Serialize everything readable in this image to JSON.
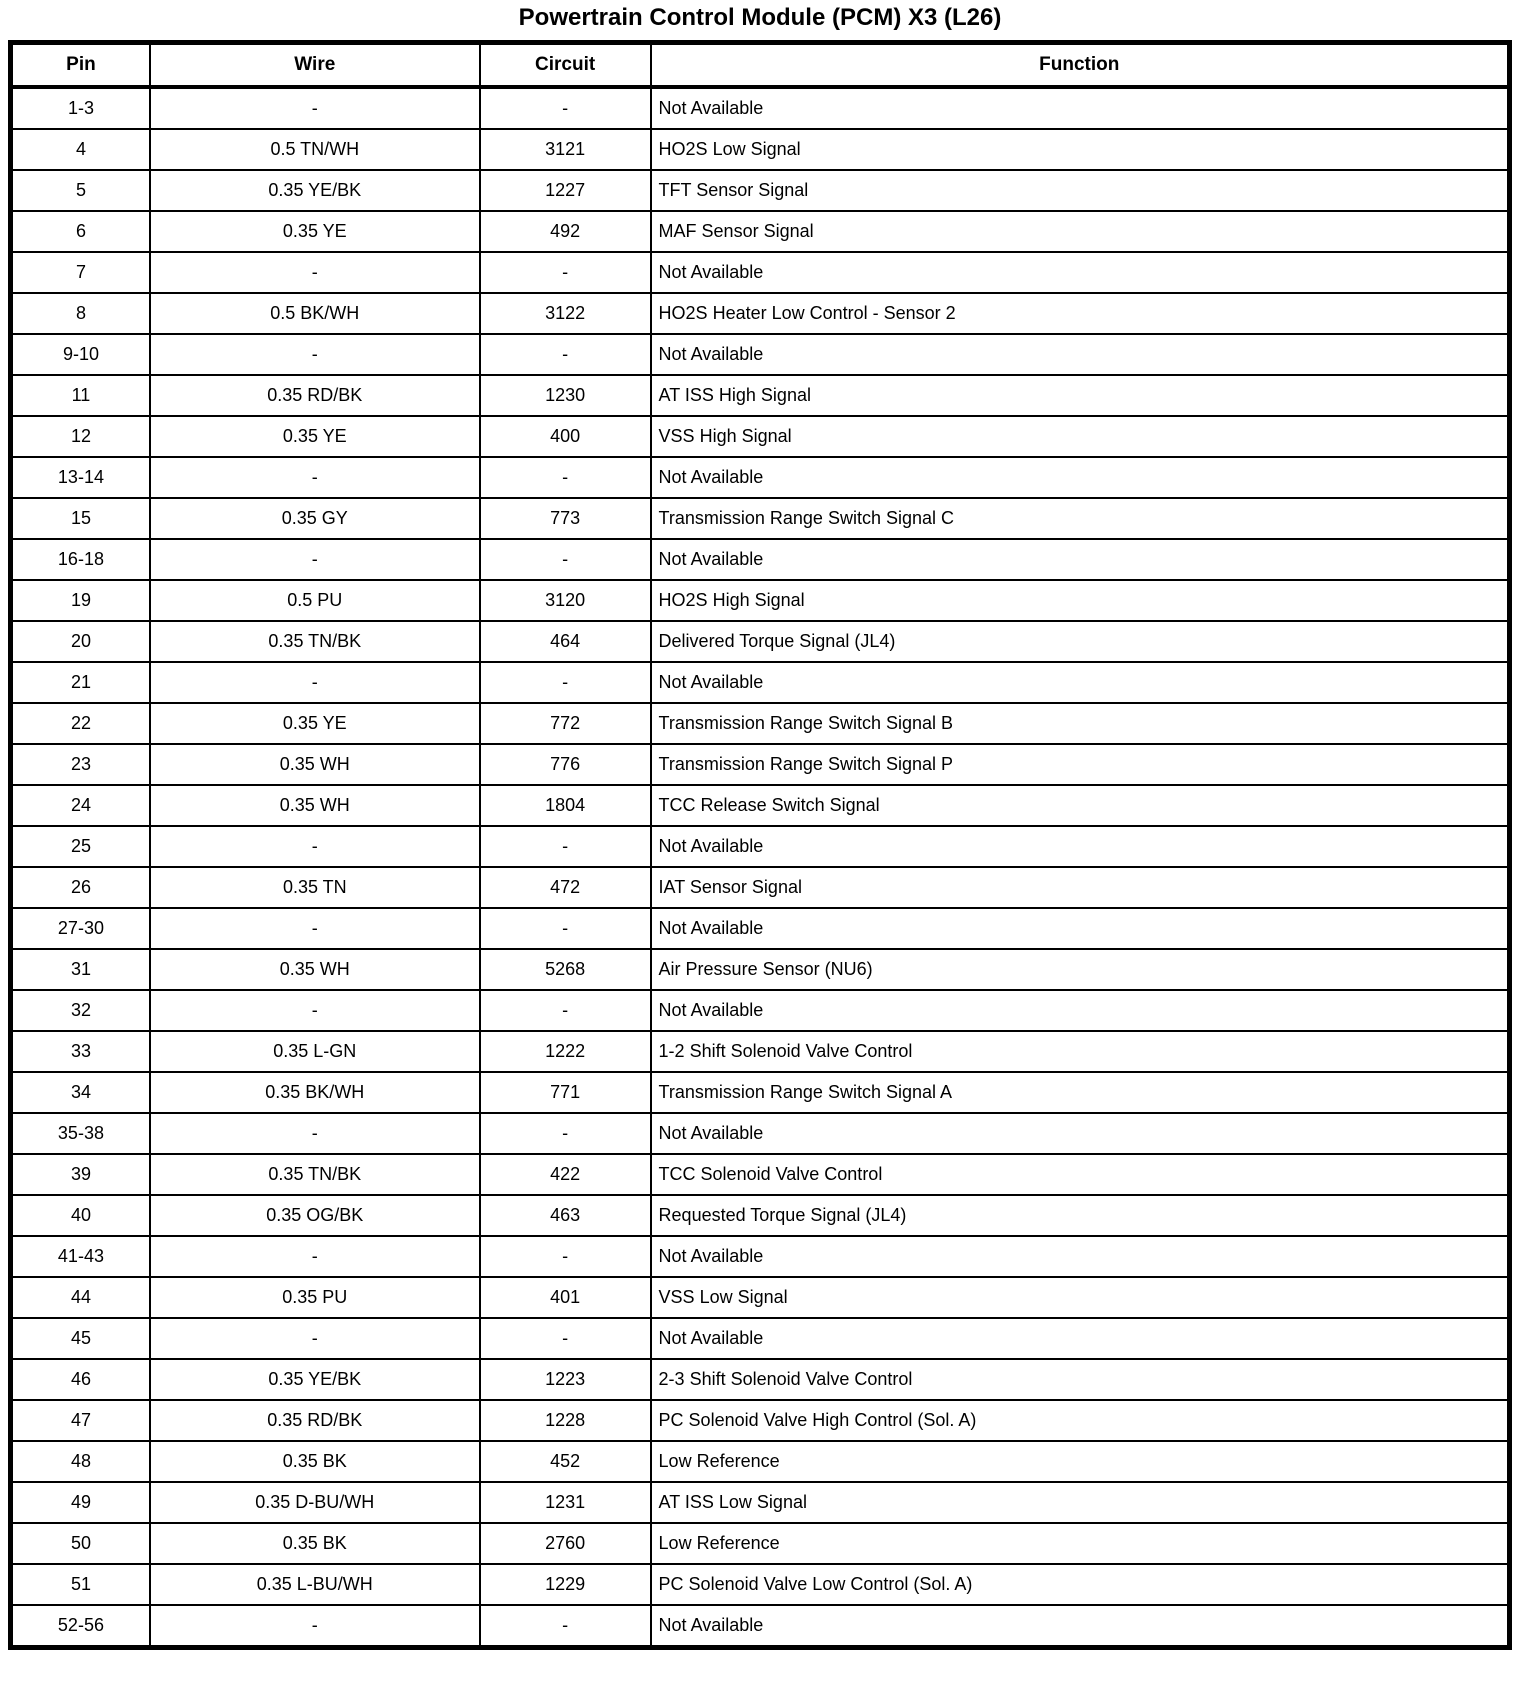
{
  "title": "Powertrain Control Module (PCM) X3 (L26)",
  "table": {
    "columns": [
      "Pin",
      "Wire",
      "Circuit",
      "Function"
    ],
    "rows": [
      [
        "1-3",
        "-",
        "-",
        "Not Available"
      ],
      [
        "4",
        "0.5 TN/WH",
        "3121",
        "HO2S Low Signal"
      ],
      [
        "5",
        "0.35 YE/BK",
        "1227",
        "TFT Sensor Signal"
      ],
      [
        "6",
        "0.35 YE",
        "492",
        "MAF Sensor Signal"
      ],
      [
        "7",
        "-",
        "-",
        "Not Available"
      ],
      [
        "8",
        "0.5 BK/WH",
        "3122",
        "HO2S Heater Low Control - Sensor 2"
      ],
      [
        "9-10",
        "-",
        "-",
        "Not Available"
      ],
      [
        "11",
        "0.35 RD/BK",
        "1230",
        "AT ISS High Signal"
      ],
      [
        "12",
        "0.35 YE",
        "400",
        "VSS High Signal"
      ],
      [
        "13-14",
        "-",
        "-",
        "Not Available"
      ],
      [
        "15",
        "0.35 GY",
        "773",
        "Transmission Range Switch Signal C"
      ],
      [
        "16-18",
        "-",
        "-",
        "Not Available"
      ],
      [
        "19",
        "0.5 PU",
        "3120",
        "HO2S High Signal"
      ],
      [
        "20",
        "0.35 TN/BK",
        "464",
        "Delivered Torque Signal (JL4)"
      ],
      [
        "21",
        "-",
        "-",
        "Not Available"
      ],
      [
        "22",
        "0.35 YE",
        "772",
        "Transmission Range Switch Signal B"
      ],
      [
        "23",
        "0.35 WH",
        "776",
        "Transmission Range Switch Signal P"
      ],
      [
        "24",
        "0.35 WH",
        "1804",
        "TCC Release Switch Signal"
      ],
      [
        "25",
        "-",
        "-",
        "Not Available"
      ],
      [
        "26",
        "0.35 TN",
        "472",
        "IAT Sensor Signal"
      ],
      [
        "27-30",
        "-",
        "-",
        "Not Available"
      ],
      [
        "31",
        "0.35 WH",
        "5268",
        "Air Pressure Sensor (NU6)"
      ],
      [
        "32",
        "-",
        "-",
        "Not Available"
      ],
      [
        "33",
        "0.35 L-GN",
        "1222",
        "1-2 Shift Solenoid Valve Control"
      ],
      [
        "34",
        "0.35 BK/WH",
        "771",
        "Transmission Range Switch Signal A"
      ],
      [
        "35-38",
        "-",
        "-",
        "Not Available"
      ],
      [
        "39",
        "0.35 TN/BK",
        "422",
        "TCC Solenoid Valve Control"
      ],
      [
        "40",
        "0.35 OG/BK",
        "463",
        "Requested Torque Signal (JL4)"
      ],
      [
        "41-43",
        "-",
        "-",
        "Not Available"
      ],
      [
        "44",
        "0.35 PU",
        "401",
        "VSS Low Signal"
      ],
      [
        "45",
        "-",
        "-",
        "Not Available"
      ],
      [
        "46",
        "0.35 YE/BK",
        "1223",
        "2-3 Shift Solenoid Valve Control"
      ],
      [
        "47",
        "0.35 RD/BK",
        "1228",
        "PC Solenoid Valve High Control (Sol. A)"
      ],
      [
        "48",
        "0.35 BK",
        "452",
        "Low Reference"
      ],
      [
        "49",
        "0.35 D-BU/WH",
        "1231",
        "AT ISS Low Signal"
      ],
      [
        "50",
        "0.35 BK",
        "2760",
        "Low Reference"
      ],
      [
        "51",
        "0.35 L-BU/WH",
        "1229",
        "PC Solenoid Valve Low Control (Sol. A)"
      ],
      [
        "52-56",
        "-",
        "-",
        "Not Available"
      ]
    ]
  },
  "colors": {
    "text": "#000000",
    "background": "#ffffff",
    "border": "#000000"
  }
}
